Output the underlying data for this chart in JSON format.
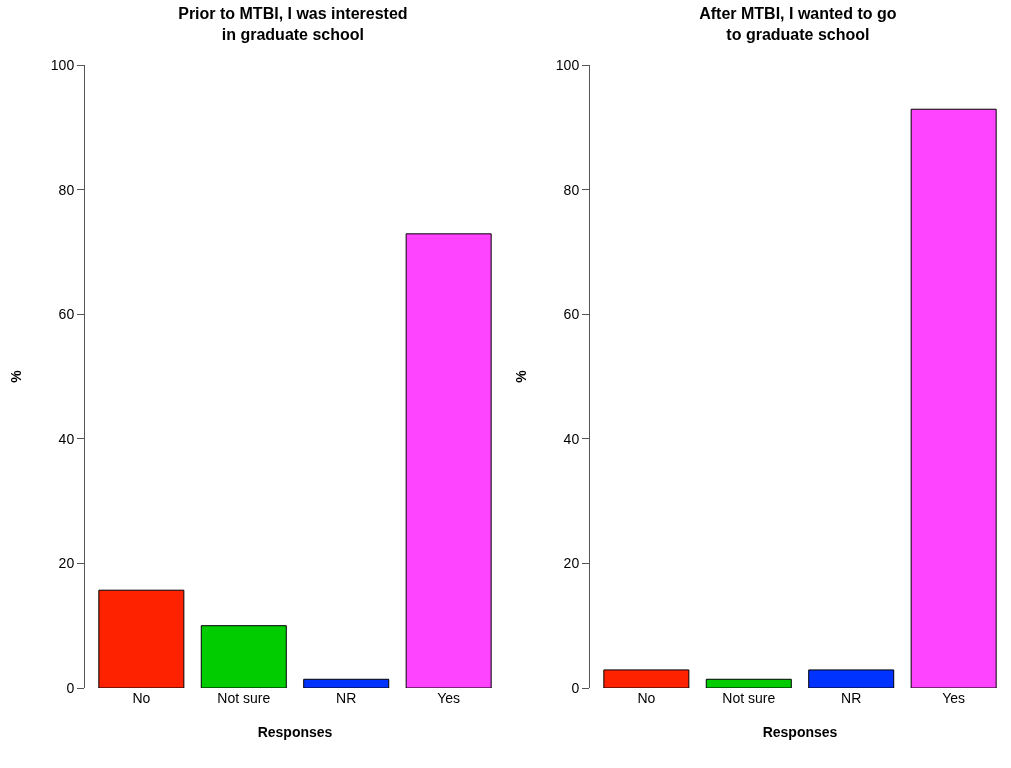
{
  "chart_data": [
    {
      "type": "bar",
      "title": "Prior to MTBI, I was interested\nin graduate school",
      "xlabel": "Responses",
      "ylabel": "%",
      "categories": [
        "No",
        "Not sure",
        "NR",
        "Yes"
      ],
      "values": [
        15.7,
        10.0,
        1.4,
        72.9
      ],
      "colors": [
        "#ff2200",
        "#00cc00",
        "#0033ff",
        "#ff44ff"
      ],
      "ylim": [
        0,
        100
      ],
      "yticks": [
        0,
        20,
        40,
        60,
        80,
        100
      ]
    },
    {
      "type": "bar",
      "title": "After MTBI, I wanted to go\nto graduate school",
      "xlabel": "Responses",
      "ylabel": "%",
      "categories": [
        "No",
        "Not sure",
        "NR",
        "Yes"
      ],
      "values": [
        2.9,
        1.4,
        2.9,
        92.9
      ],
      "colors": [
        "#ff2200",
        "#00cc00",
        "#0033ff",
        "#ff44ff"
      ],
      "ylim": [
        0,
        100
      ],
      "yticks": [
        0,
        20,
        40,
        60,
        80,
        100
      ]
    }
  ]
}
